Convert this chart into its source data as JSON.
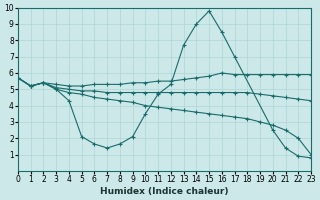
{
  "xlabel": "Humidex (Indice chaleur)",
  "xlim": [
    0,
    23
  ],
  "ylim": [
    0,
    10
  ],
  "xticks": [
    0,
    1,
    2,
    3,
    4,
    5,
    6,
    7,
    8,
    9,
    10,
    11,
    12,
    13,
    14,
    15,
    16,
    17,
    18,
    19,
    20,
    21,
    22,
    23
  ],
  "yticks": [
    1,
    2,
    3,
    4,
    5,
    6,
    7,
    8,
    9,
    10
  ],
  "bg_color": "#cce8e8",
  "line_color": "#1a6b6b",
  "grid_color": "#aed4d4",
  "lines": [
    {
      "x": [
        0,
        1,
        2,
        3,
        4,
        5,
        6,
        7,
        8,
        9,
        10,
        11,
        12,
        13,
        14,
        15,
        16,
        17,
        20,
        21,
        22,
        23
      ],
      "y": [
        5.7,
        5.2,
        5.4,
        5.0,
        4.3,
        2.1,
        1.65,
        1.4,
        1.65,
        2.1,
        3.5,
        4.7,
        5.3,
        7.7,
        9.0,
        9.8,
        8.5,
        7.0,
        2.5,
        1.4,
        0.9,
        0.8
      ]
    },
    {
      "x": [
        0,
        1,
        2,
        3,
        4,
        5,
        6,
        7,
        8,
        9,
        10,
        11,
        12,
        13,
        14,
        15,
        16,
        17,
        18,
        19,
        20,
        21,
        22,
        23
      ],
      "y": [
        5.7,
        5.2,
        5.4,
        5.3,
        5.2,
        5.2,
        5.3,
        5.3,
        5.3,
        5.4,
        5.4,
        5.5,
        5.5,
        5.6,
        5.7,
        5.8,
        6.0,
        5.9,
        5.9,
        5.9,
        5.9,
        5.9,
        5.9,
        5.9
      ]
    },
    {
      "x": [
        0,
        1,
        2,
        3,
        4,
        5,
        6,
        7,
        8,
        9,
        10,
        11,
        12,
        13,
        14,
        15,
        16,
        17,
        18,
        19,
        20,
        21,
        22,
        23
      ],
      "y": [
        5.7,
        5.2,
        5.4,
        5.1,
        5.0,
        4.9,
        4.9,
        4.8,
        4.8,
        4.8,
        4.8,
        4.8,
        4.8,
        4.8,
        4.8,
        4.8,
        4.8,
        4.8,
        4.8,
        4.7,
        4.6,
        4.5,
        4.4,
        4.3
      ]
    },
    {
      "x": [
        0,
        1,
        2,
        3,
        4,
        5,
        6,
        7,
        8,
        9,
        10,
        11,
        12,
        13,
        14,
        15,
        16,
        17,
        18,
        19,
        20,
        21,
        22,
        23
      ],
      "y": [
        5.7,
        5.2,
        5.4,
        5.0,
        4.8,
        4.7,
        4.5,
        4.4,
        4.3,
        4.2,
        4.0,
        3.9,
        3.8,
        3.7,
        3.6,
        3.5,
        3.4,
        3.3,
        3.2,
        3.0,
        2.8,
        2.5,
        2.0,
        1.0
      ]
    }
  ]
}
